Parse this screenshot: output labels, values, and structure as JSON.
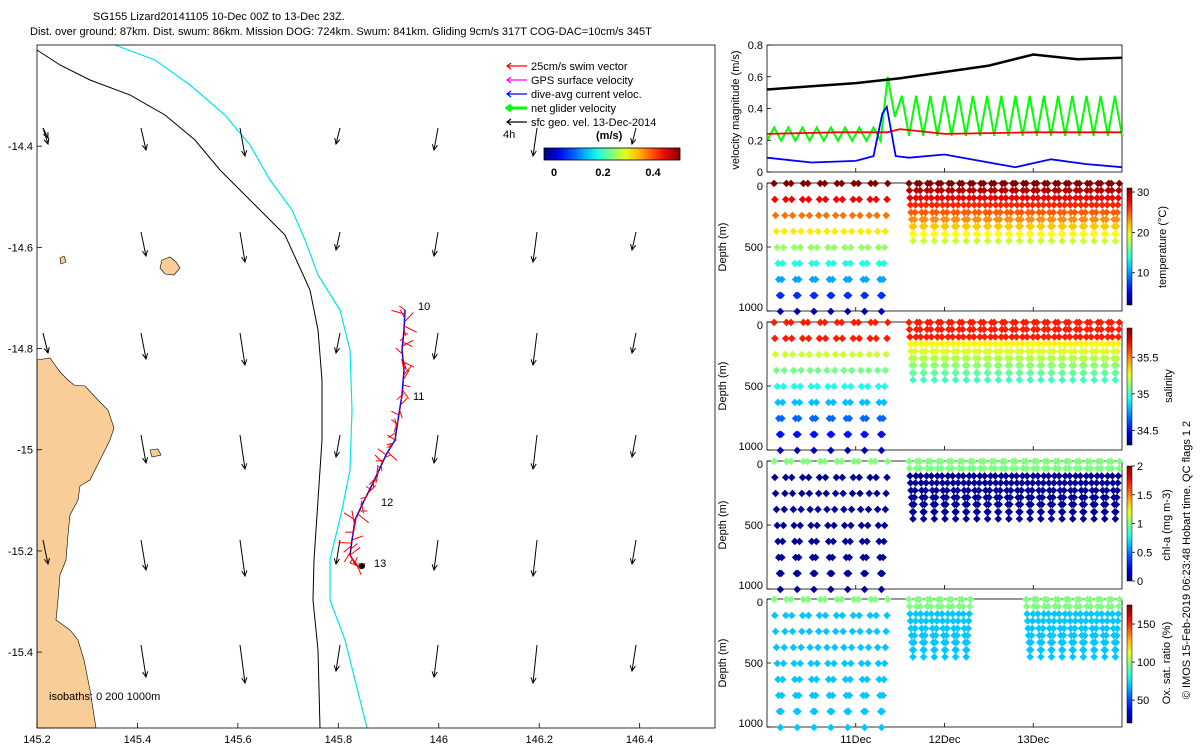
{
  "title": {
    "line1": "SG155 Lizard20141105 10-Dec 00Z to 13-Dec 23Z.",
    "line2": "Dist. over ground: 87km. Dist. swum: 86km. Mission DOG: 724km. Swum: 841km. Gliding 9cm/s 317T COG-DAC=10cm/s 345T"
  },
  "colors": {
    "land": "#f9cd97",
    "cyan_isobath": "#00e5ee",
    "swim_vector": "#ff0000",
    "gps_velocity": "#ff00ff",
    "dac": "#0000ff",
    "net_glider": "#00ff00",
    "sfc_geo": "#000000"
  },
  "map": {
    "legend": [
      {
        "label": "25cm/s swim vector",
        "color": "#ff0000"
      },
      {
        "label": "GPS surface velocity",
        "color": "#ff00ff"
      },
      {
        "label": "dive-avg current veloc.",
        "color": "#0000ff"
      },
      {
        "label": "net glider velocity",
        "color": "#00ff00"
      },
      {
        "label": "sfc geo. vel. 13-Dec-2014",
        "color": "#000000"
      }
    ],
    "time_step_label": "4h",
    "colorbar": {
      "unit_label": "(m/s)",
      "ticks": [
        "0",
        "0.2",
        "0.4"
      ],
      "range": [
        0,
        0.5
      ]
    },
    "isobaths_label": "isobaths: 0   200  1000m",
    "x_ticks": [
      "145.2",
      "145.4",
      "145.6",
      "145.8",
      "146",
      "146.2",
      "146.4"
    ],
    "y_ticks": [
      "-14.4",
      "-14.6",
      "-14.8",
      "-15",
      "-15.2",
      "-15.4"
    ],
    "day_labels": [
      "10",
      "11",
      "12",
      "13"
    ],
    "xlim": [
      145.2,
      146.55
    ],
    "ylim": [
      -15.55,
      -14.2
    ]
  },
  "chart_data": [
    {
      "type": "line",
      "ylabel": "velocity magnitude (m/s)",
      "ylim": [
        0,
        0.8
      ],
      "y_ticks": [
        "0",
        "0.2",
        "0.4",
        "0.6",
        "0.8"
      ],
      "series": [
        {
          "x": [
            0,
            0.5,
            1,
            1.5,
            2,
            2.5,
            3,
            3.5,
            4
          ],
          "values": [
            0.52,
            0.54,
            0.56,
            0.59,
            0.63,
            0.67,
            0.74,
            0.71,
            0.72
          ],
          "color": "#000000"
        },
        {
          "x": [
            0,
            0.8,
            1.2,
            1.35,
            1.5,
            2,
            3,
            4
          ],
          "values": [
            0.24,
            0.25,
            0.25,
            0.25,
            0.27,
            0.24,
            0.25,
            0.25
          ],
          "color": "#ff0000"
        },
        {
          "x": [
            0,
            0.5,
            1,
            1.2,
            1.3,
            1.35,
            1.45,
            1.6,
            2,
            2.5,
            2.8,
            3.2,
            3.6,
            4
          ],
          "values": [
            0.09,
            0.06,
            0.07,
            0.1,
            0.37,
            0.41,
            0.1,
            0.09,
            0.11,
            0.06,
            0.03,
            0.08,
            0.05,
            0.03
          ],
          "color": "#0000ff"
        }
      ]
    },
    {
      "type": "scatter",
      "ylabel": "Depth (m)",
      "colorbar_label": "temperature (°C)",
      "ylim": [
        0,
        1000
      ],
      "y_ticks": [
        "0",
        "500",
        "1000"
      ],
      "colorbar_ticks": [
        "10",
        "20",
        "30"
      ],
      "colorbar_range": [
        2,
        31
      ]
    },
    {
      "type": "scatter",
      "ylabel": "Depth (m)",
      "colorbar_label": "salinity",
      "ylim": [
        0,
        1000
      ],
      "y_ticks": [
        "0",
        "500",
        "1000"
      ],
      "colorbar_ticks": [
        "34.5",
        "35",
        "35.5"
      ],
      "colorbar_range": [
        34.3,
        35.9
      ]
    },
    {
      "type": "scatter",
      "ylabel": "Depth (m)",
      "colorbar_label": "chl-a (mg m-3)",
      "ylim": [
        0,
        1000
      ],
      "y_ticks": [
        "0",
        "500",
        "1000"
      ],
      "colorbar_ticks": [
        "0",
        "0.5",
        "1",
        "1.5",
        "2"
      ],
      "colorbar_range": [
        0,
        2
      ]
    },
    {
      "type": "scatter",
      "ylabel": "Depth (m)",
      "colorbar_label": "Ox. sat. ratio (%)",
      "ylim": [
        0,
        1000
      ],
      "y_ticks": [
        "0",
        "500",
        "1000"
      ],
      "colorbar_ticks": [
        "50",
        "100",
        "150"
      ],
      "colorbar_range": [
        20,
        175
      ]
    }
  ],
  "time_axis": {
    "ticks": [
      "11Dec",
      "12Dec",
      "13Dec"
    ]
  },
  "side_note": "© IMOS 15-Feb-2019 06:23:48 Hobart time. QC flags 1  2"
}
